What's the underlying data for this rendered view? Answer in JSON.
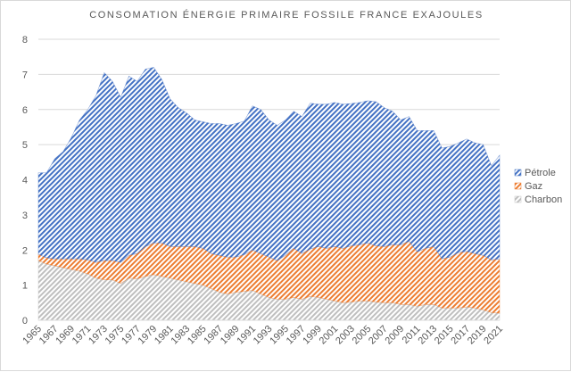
{
  "chart_data": {
    "type": "area",
    "stacked": true,
    "title": "CONSOMATION ÉNERGIE PRIMAIRE FOSSILE FRANCE EXAJOULES",
    "xlabel": "",
    "ylabel": "",
    "ylim": [
      0,
      8
    ],
    "yticks": [
      0,
      1,
      2,
      3,
      4,
      5,
      6,
      7,
      8
    ],
    "grid": true,
    "legend_position": "right",
    "x": [
      1965,
      1966,
      1967,
      1968,
      1969,
      1970,
      1971,
      1972,
      1973,
      1974,
      1975,
      1976,
      1977,
      1978,
      1979,
      1980,
      1981,
      1982,
      1983,
      1984,
      1985,
      1986,
      1987,
      1988,
      1989,
      1990,
      1991,
      1992,
      1993,
      1994,
      1995,
      1996,
      1997,
      1998,
      1999,
      2000,
      2001,
      2002,
      2003,
      2004,
      2005,
      2006,
      2007,
      2008,
      2009,
      2010,
      2011,
      2012,
      2013,
      2014,
      2015,
      2016,
      2017,
      2018,
      2019,
      2020,
      2021
    ],
    "xtick_labels": [
      "1965",
      "1967",
      "1969",
      "1971",
      "1973",
      "1975",
      "1977",
      "1979",
      "1981",
      "1983",
      "1985",
      "1987",
      "1989",
      "1991",
      "1993",
      "1995",
      "1997",
      "1999",
      "2001",
      "2003",
      "2005",
      "2007",
      "2009",
      "2011",
      "2013",
      "2015",
      "2017",
      "2019",
      "2021"
    ],
    "series": [
      {
        "name": "Charbon",
        "color": "#bfbfbf",
        "values": [
          1.7,
          1.6,
          1.55,
          1.5,
          1.45,
          1.4,
          1.32,
          1.2,
          1.15,
          1.15,
          1.05,
          1.2,
          1.18,
          1.25,
          1.3,
          1.25,
          1.2,
          1.15,
          1.1,
          1.05,
          1.0,
          0.9,
          0.8,
          0.75,
          0.8,
          0.82,
          0.85,
          0.75,
          0.65,
          0.6,
          0.6,
          0.65,
          0.6,
          0.68,
          0.65,
          0.6,
          0.55,
          0.5,
          0.52,
          0.55,
          0.55,
          0.52,
          0.5,
          0.5,
          0.45,
          0.45,
          0.4,
          0.45,
          0.45,
          0.35,
          0.35,
          0.35,
          0.38,
          0.35,
          0.3,
          0.22,
          0.2
        ]
      },
      {
        "name": "Gaz",
        "color": "#ed7d31",
        "values": [
          0.18,
          0.18,
          0.2,
          0.25,
          0.3,
          0.35,
          0.4,
          0.45,
          0.55,
          0.55,
          0.6,
          0.65,
          0.72,
          0.85,
          0.9,
          0.95,
          0.9,
          0.95,
          1.0,
          1.05,
          1.05,
          1.0,
          1.05,
          1.05,
          1.0,
          1.05,
          1.15,
          1.15,
          1.15,
          1.1,
          1.25,
          1.4,
          1.3,
          1.35,
          1.45,
          1.45,
          1.55,
          1.55,
          1.6,
          1.6,
          1.65,
          1.6,
          1.6,
          1.65,
          1.7,
          1.8,
          1.55,
          1.6,
          1.65,
          1.4,
          1.45,
          1.58,
          1.58,
          1.55,
          1.55,
          1.5,
          1.55
        ]
      },
      {
        "name": "Pétrole",
        "color": "#4472c4",
        "values": [
          2.32,
          2.42,
          2.85,
          3.05,
          3.45,
          3.95,
          4.28,
          4.75,
          5.35,
          5.1,
          4.7,
          5.1,
          4.9,
          5.05,
          5.0,
          4.65,
          4.2,
          3.95,
          3.8,
          3.6,
          3.6,
          3.7,
          3.75,
          3.75,
          3.8,
          3.8,
          4.1,
          4.1,
          3.9,
          3.85,
          3.85,
          3.9,
          3.9,
          4.15,
          4.05,
          4.1,
          4.1,
          4.1,
          4.05,
          4.05,
          4.05,
          4.1,
          3.95,
          3.8,
          3.55,
          3.55,
          3.45,
          3.35,
          3.3,
          3.15,
          3.15,
          3.12,
          3.2,
          3.15,
          3.15,
          2.68,
          2.95
        ]
      }
    ]
  }
}
